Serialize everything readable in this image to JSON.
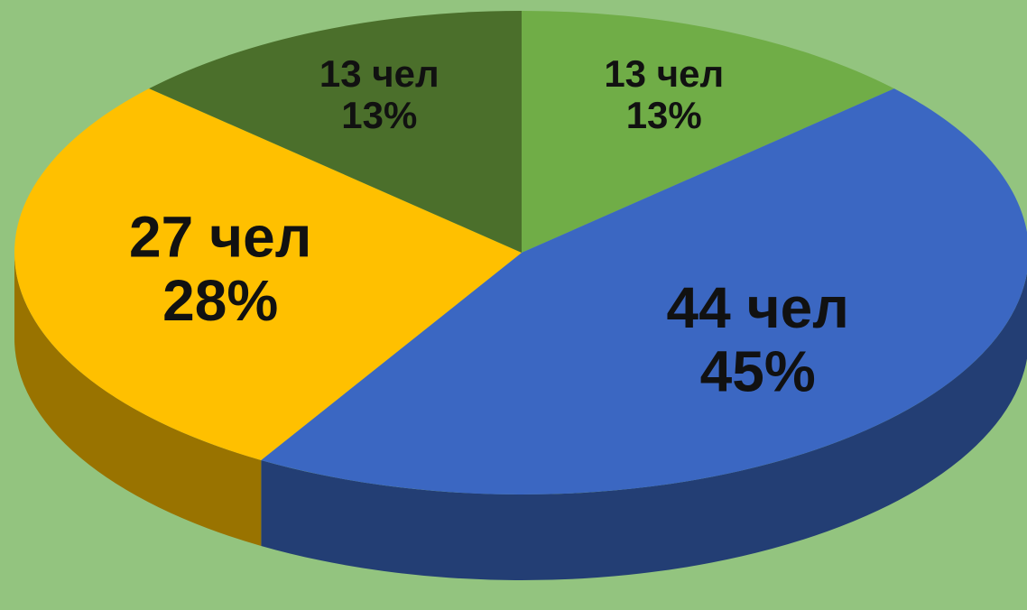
{
  "chart_data": {
    "type": "pie",
    "values": [
      13,
      45,
      28,
      13
    ],
    "value_labels": [
      "13%",
      "45%",
      "28%",
      "13%"
    ],
    "count_labels": [
      "13 чел",
      "44 чел",
      "27 чел",
      "13 чел"
    ],
    "colors": [
      "#70ad47",
      "#3b67c2",
      "#ffc000",
      "#4b6f2b"
    ]
  }
}
